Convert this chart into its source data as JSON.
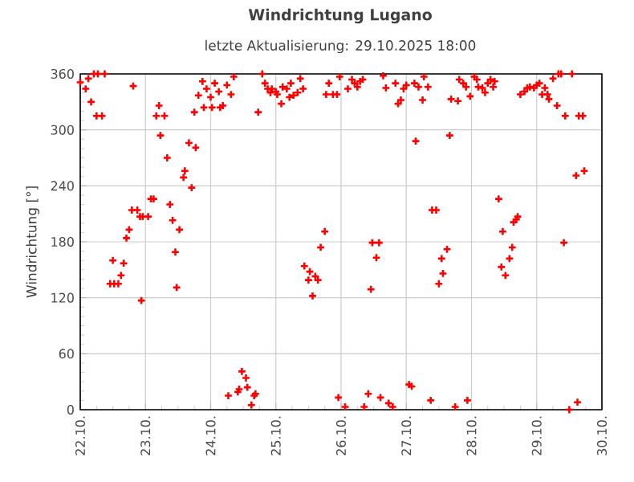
{
  "chart_data": {
    "type": "scatter",
    "title": "Windrichtung Lugano",
    "subtitle": "letzte Aktualisierung: 29.10.2025 18:00",
    "ylabel": "Windrichtung [°]",
    "xlim": [
      "2025-10-22",
      "2025-10-30"
    ],
    "ylim": [
      0,
      360
    ],
    "xticks": [
      {
        "value": "2025-10-22",
        "label": "22.10."
      },
      {
        "value": "2025-10-23",
        "label": "23.10."
      },
      {
        "value": "2025-10-24",
        "label": "24.10."
      },
      {
        "value": "2025-10-25",
        "label": "25.10."
      },
      {
        "value": "2025-10-26",
        "label": "26.10."
      },
      {
        "value": "2025-10-27",
        "label": "27.10."
      },
      {
        "value": "2025-10-28",
        "label": "28.10."
      },
      {
        "value": "2025-10-29",
        "label": "29.10."
      },
      {
        "value": "2025-10-30",
        "label": "30.10."
      }
    ],
    "yticks": [
      0,
      60,
      120,
      180,
      240,
      300,
      360
    ],
    "grid": true,
    "marker": "cross",
    "series": [
      {
        "color": "#ff0000",
        "x": [
          "2025-10-22T00:00",
          "2025-10-22T02:00",
          "2025-10-22T03:00",
          "2025-10-22T05:00",
          "2025-10-22T06:30",
          "2025-10-22T09:00",
          "2025-10-22T04:00",
          "2025-10-22T06:00",
          "2025-10-22T08:00",
          "2025-10-22T19:30",
          "2025-10-22T12:00",
          "2025-10-22T16:00",
          "2025-10-22T15:00",
          "2025-10-22T11:00",
          "2025-10-22T12:30",
          "2025-10-22T14:00",
          "2025-10-22T17:00",
          "2025-10-22T18:00",
          "2025-10-22T19:00",
          "2025-10-22T21:00",
          "2025-10-22T22:00",
          "2025-10-22T23:00",
          "2025-10-23T01:00",
          "2025-10-22T22:30",
          "2025-10-23T02:00",
          "2025-10-23T03:00",
          "2025-10-23T05:00",
          "2025-10-23T04:00",
          "2025-10-23T07:00",
          "2025-10-23T05:30",
          "2025-10-23T08:00",
          "2025-10-23T09:00",
          "2025-10-23T10:00",
          "2025-10-23T12:30",
          "2025-10-23T11:00",
          "2025-10-23T11:30",
          "2025-10-23T14:30",
          "2025-10-23T14:00",
          "2025-10-23T16:00",
          "2025-10-23T18:30",
          "2025-10-23T17:00",
          "2025-10-23T18:00",
          "2025-10-23T19:30",
          "2025-10-23T21:00",
          "2025-10-23T21:30",
          "2025-10-23T22:30",
          "2025-10-24T00:00",
          "2025-10-24T00:30",
          "2025-10-24T01:30",
          "2025-10-24T03:00",
          "2025-10-24T03:30",
          "2025-10-24T04:30",
          "2025-10-24T06:00",
          "2025-10-24T07:30",
          "2025-10-24T08:30",
          "2025-10-24T06:30",
          "2025-10-24T10:00",
          "2025-10-24T10:30",
          "2025-10-24T11:30",
          "2025-10-24T13:00",
          "2025-10-24T13:30",
          "2025-10-24T15:00",
          "2025-10-24T16:00",
          "2025-10-24T16:30",
          "2025-10-24T19:00",
          "2025-10-24T20:00",
          "2025-10-24T21:00",
          "2025-10-24T22:00",
          "2025-10-24T22:30",
          "2025-10-25T00:00",
          "2025-10-25T00:30",
          "2025-10-25T02:00",
          "2025-10-25T02:30",
          "2025-10-25T04:00",
          "2025-10-25T05:30",
          "2025-10-25T05:00",
          "2025-10-25T06:30",
          "2025-10-25T08:00",
          "2025-10-25T09:00",
          "2025-10-25T10:00",
          "2025-10-24T17:30",
          "2025-10-25T18:30",
          "2025-10-25T19:30",
          "2025-10-25T21:00",
          "2025-10-25T22:30",
          "2025-10-25T23:30",
          "2025-10-26T02:30",
          "2025-10-26T04:00",
          "2025-10-26T05:00",
          "2025-10-26T06:00",
          "2025-10-26T07:00",
          "2025-10-26T08:00",
          "2025-10-26T15:30",
          "2025-10-26T16:30",
          "2025-10-26T20:00",
          "2025-10-26T21:00",
          "2025-10-26T22:00",
          "2025-10-26T23:00",
          "2025-10-27T00:00",
          "2025-10-27T03:00",
          "2025-10-27T04:30",
          "2025-10-27T06:00",
          "2025-10-27T06:30",
          "2025-10-27T08:00",
          "2025-10-27T03:30",
          "2025-10-25T18:00",
          "2025-10-25T16:30",
          "2025-10-25T10:30",
          "2025-10-25T12:30",
          "2025-10-25T14:30",
          "2025-10-25T15:30",
          "2025-10-25T12:00",
          "2025-10-25T13:30",
          "2025-10-26T11:30",
          "2025-10-26T14:00",
          "2025-10-26T13:00",
          "2025-10-26T11:00",
          "2025-10-25T23:00",
          "2025-10-26T01:30",
          "2025-10-26T10:00",
          "2025-10-26T08:30",
          "2025-10-26T14:30",
          "2025-10-26T17:30",
          "2025-10-26T19:00",
          "2025-10-27T01:00",
          "2025-10-27T02:00",
          "2025-10-27T16:30",
          "2025-10-27T19:00",
          "2025-10-27T19:30",
          "2025-10-27T21:00",
          "2025-10-27T22:00",
          "2025-10-27T23:30",
          "2025-10-28T01:00",
          "2025-10-28T02:00",
          "2025-10-28T02:30",
          "2025-10-28T04:00",
          "2025-10-28T05:00",
          "2025-10-28T06:00",
          "2025-10-28T07:00",
          "2025-10-28T08:30",
          "2025-10-28T08:00",
          "2025-10-28T18:00",
          "2025-10-28T19:30",
          "2025-10-28T20:30",
          "2025-10-28T21:30",
          "2025-10-28T23:00",
          "2025-10-29T00:00",
          "2025-10-29T01:00",
          "2025-10-29T02:00",
          "2025-10-29T03:00",
          "2025-10-29T04:00",
          "2025-10-29T04:30",
          "2025-10-29T06:00",
          "2025-10-29T07:30",
          "2025-10-29T08:00",
          "2025-10-29T09:00",
          "2025-10-29T10:30",
          "2025-10-29T13:00",
          "2025-10-29T15:30",
          "2025-10-29T17:00",
          "2025-10-27T16:00",
          "2025-10-29T14:30",
          "2025-10-29T17:30",
          "2025-10-27T09:30",
          "2025-10-27T11:00",
          "2025-10-28T10:00",
          "2025-10-28T17:00",
          "2025-10-28T16:30",
          "2025-10-28T15:30",
          "2025-10-28T11:30",
          "2025-10-28T15:00",
          "2025-10-28T14:00",
          "2025-10-28T11:00",
          "2025-10-28T12:30",
          "2025-10-27T15:00",
          "2025-10-27T13:00",
          "2025-10-27T13:30",
          "2025-10-27T12:00",
          "2025-10-29T10:00",
          "2025-10-27T09:00",
          "2025-10-27T18:00",
          "2025-10-27T22:30",
          "2025-10-29T12:00",
          "2025-10-29T15:00"
        ],
        "values": [
          351,
          344,
          355,
          360,
          360,
          360,
          330,
          315,
          315,
          347,
          160,
          157,
          144,
          135,
          135,
          135,
          184,
          193,
          214,
          214,
          207,
          207,
          207,
          117,
          226,
          226,
          326,
          315,
          315,
          294,
          270,
          220,
          203,
          193,
          169,
          131,
          256,
          249,
          286,
          281,
          238,
          319,
          337,
          352,
          324,
          344,
          335,
          324,
          350,
          341,
          324,
          326,
          348,
          338,
          357,
          15,
          19,
          22,
          41,
          34,
          24,
          5,
          15,
          17,
          360,
          350,
          344,
          340,
          344,
          341,
          338,
          328,
          346,
          344,
          350,
          335,
          337,
          340,
          355,
          344,
          319,
          338,
          350,
          338,
          338,
          357,
          344,
          354,
          350,
          346,
          352,
          354,
          358,
          345,
          350,
          328,
          332,
          344,
          348,
          350,
          346,
          332,
          357,
          346,
          288,
          191,
          174,
          154,
          148,
          143,
          139,
          139,
          122,
          179,
          179,
          163,
          129,
          13,
          3,
          17,
          3,
          13,
          7,
          3,
          27,
          25,
          333,
          331,
          354,
          350,
          346,
          336,
          357,
          354,
          346,
          345,
          340,
          350,
          354,
          352,
          346,
          338,
          341,
          345,
          346,
          345,
          348,
          350,
          338,
          345,
          338,
          333,
          355,
          326,
          360,
          360,
          315,
          360,
          315,
          315,
          294,
          251,
          256,
          214,
          214,
          226,
          207,
          204,
          201,
          191,
          174,
          162,
          153,
          144,
          172,
          162,
          146,
          135,
          179,
          10,
          3,
          10,
          0,
          8
        ]
      }
    ]
  }
}
